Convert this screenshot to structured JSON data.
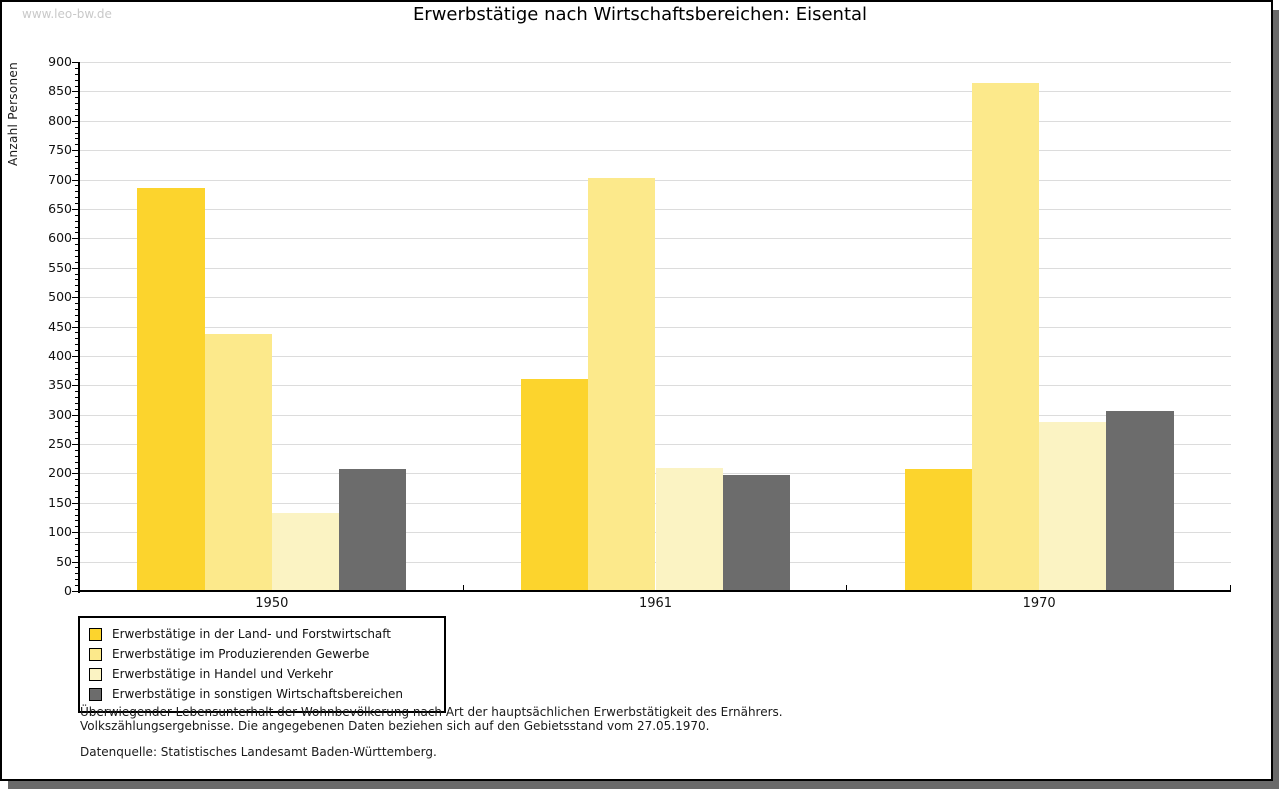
{
  "page": {
    "watermark": "www.leo-bw.de"
  },
  "chart_data": {
    "type": "bar",
    "title": "Erwerbstätige nach Wirtschaftsbereichen: Eisental",
    "xlabel": "",
    "ylabel": "Anzahl Personen",
    "categories": [
      "1950",
      "1961",
      "1970"
    ],
    "series": [
      {
        "name": "Erwerbstätige in der Land- und Forstwirtschaft",
        "color": "#fcd42d",
        "values": [
          685,
          360,
          207
        ]
      },
      {
        "name": "Erwerbstätige im Produzierenden Gewerbe",
        "color": "#fce98b",
        "values": [
          437,
          703,
          865
        ]
      },
      {
        "name": "Erwerbstätige in Handel und Verkehr",
        "color": "#fbf3c3",
        "values": [
          133,
          210,
          287
        ]
      },
      {
        "name": "Erwerbstätige in sonstigen Wirtschaftsbereichen",
        "color": "#6c6c6c",
        "values": [
          207,
          197,
          307
        ]
      }
    ],
    "ylim": [
      0,
      900
    ],
    "yticks": [
      0,
      50,
      100,
      150,
      200,
      250,
      300,
      350,
      400,
      450,
      500,
      550,
      600,
      650,
      700,
      750,
      800,
      850,
      900
    ],
    "minor_tick_step": 10,
    "grid": true,
    "legend_position": "bottom-left"
  },
  "footer": {
    "note_line1": "Überwiegender Lebensunterhalt der Wohnbevölkerung nach Art der hauptsächlichen Erwerbstätigkeit des Ernährers.",
    "note_line2": "Volkszählungsergebnisse. Die angegebenen Daten beziehen sich auf den Gebietsstand vom 27.05.1970.",
    "source": "Datenquelle: Statistisches Landesamt Baden-Württemberg."
  },
  "colors": {
    "gridline": "#dcdcdc",
    "axis": "#000000",
    "frame_shadow": "#6a6a6a",
    "watermark": "#c9c9c9"
  }
}
